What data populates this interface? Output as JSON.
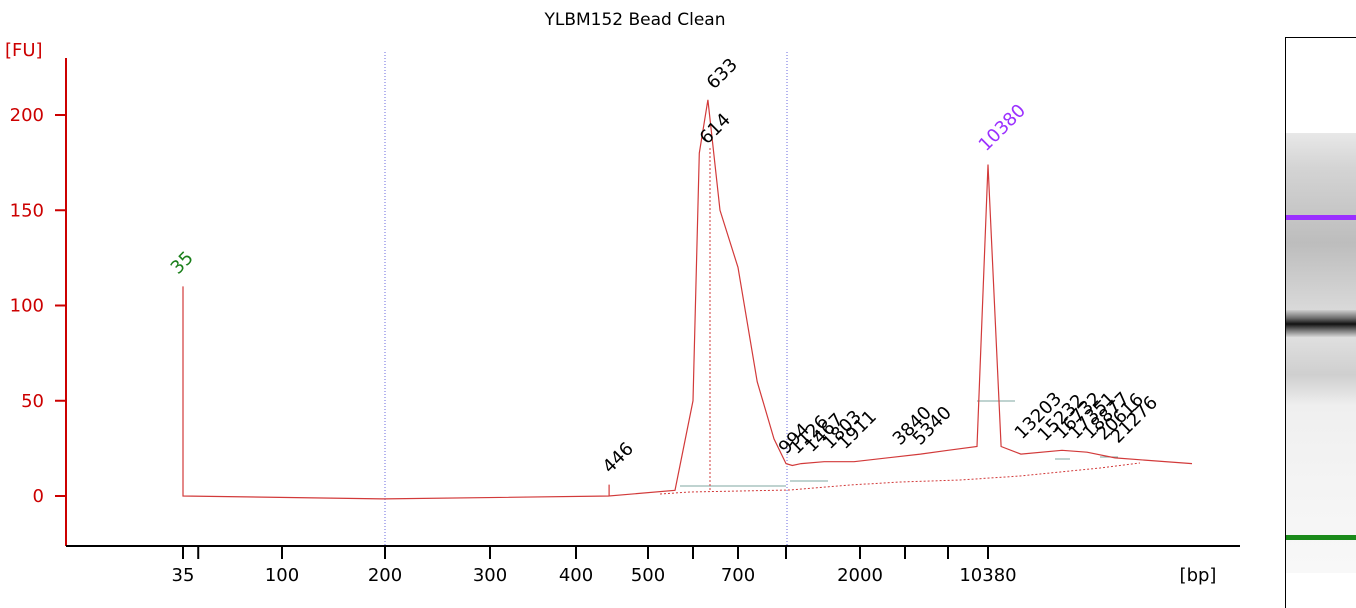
{
  "chart_data": {
    "type": "line",
    "title": "YLBM152 Bead Clean",
    "ylabel": "[FU]",
    "xlabel": "[bp]",
    "ylim": [
      -22,
      230
    ],
    "yticks": [
      0,
      50,
      100,
      150,
      200
    ],
    "x_axis_ticks": [
      "35",
      "100",
      "200",
      "300",
      "400",
      "500",
      "700",
      "2000",
      "10380"
    ],
    "grid": false,
    "colors": {
      "trace": "#d23a3a",
      "axis": "#cc0000",
      "lower_marker": "#1a7f1a",
      "upper_marker": "#9b30ff",
      "text": "#000000"
    },
    "markers": [
      {
        "label": "35",
        "role": "lower-marker",
        "color": "#1a7f1a"
      },
      {
        "label": "10380",
        "role": "upper-marker",
        "color": "#9b30ff"
      }
    ],
    "peak_labels": [
      "35",
      "446",
      "614",
      "633",
      "994",
      "1126",
      "1467",
      "1803",
      "1911",
      "3840",
      "5340",
      "10380",
      "13203",
      "15232",
      "16732",
      "17351",
      "18877",
      "20616",
      "21276"
    ],
    "series": [
      {
        "values": [
          [
            35,
            0
          ],
          [
            35,
            110
          ],
          [
            35,
            0
          ],
          [
            200,
            -1.5
          ],
          [
            446,
            0
          ],
          [
            446,
            6
          ],
          [
            446,
            0
          ],
          [
            560,
            3
          ],
          [
            600,
            50
          ],
          [
            614,
            180
          ],
          [
            633,
            208
          ],
          [
            660,
            150
          ],
          [
            700,
            120
          ],
          [
            780,
            60
          ],
          [
            850,
            30
          ],
          [
            900,
            17
          ],
          [
            994,
            16
          ],
          [
            1126,
            17
          ],
          [
            1467,
            18
          ],
          [
            1911,
            18
          ],
          [
            3840,
            22
          ],
          [
            5340,
            24
          ],
          [
            9000,
            26
          ],
          [
            10380,
            174
          ],
          [
            11500,
            26
          ],
          [
            13203,
            22
          ],
          [
            16732,
            24
          ],
          [
            18877,
            23
          ],
          [
            21276,
            20
          ],
          [
            26000,
            17
          ]
        ]
      }
    ]
  },
  "gel": {
    "bands": [
      {
        "color": "#9b30ff",
        "label": "upper-marker"
      },
      {
        "color": "#1a1a1a",
        "label": "main-band"
      },
      {
        "color": "#1a8a1a",
        "label": "lower-marker"
      }
    ]
  }
}
